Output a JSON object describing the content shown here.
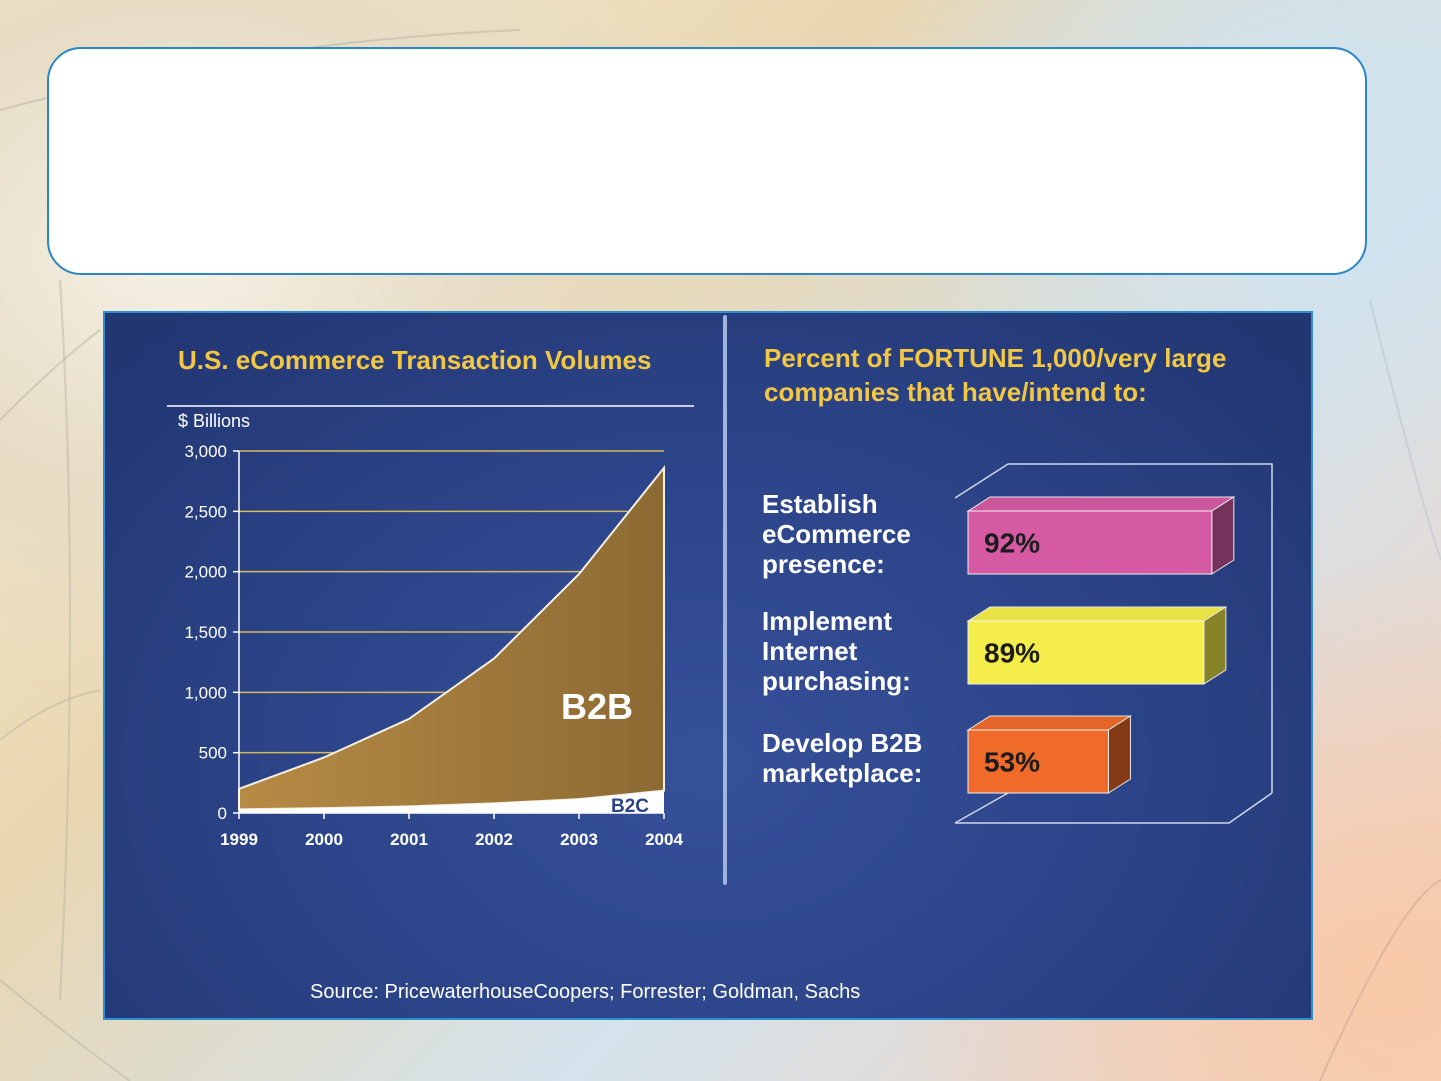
{
  "title_box": {
    "text": ""
  },
  "panel": {
    "source": "Source:  PricewaterhouseCoopers; Forrester; Goldman, Sachs"
  },
  "chart_data": [
    {
      "type": "area",
      "title": "U.S. eCommerce Transaction Volumes",
      "ylabel": "$ Billions",
      "xlabel": "",
      "x": [
        "1999",
        "2000",
        "2001",
        "2002",
        "2003",
        "2004"
      ],
      "yticks": [
        "0",
        "500",
        "1,000",
        "1,500",
        "2,000",
        "2,500",
        "3,000"
      ],
      "ylim": [
        0,
        3000
      ],
      "grid": true,
      "colors": {
        "B2B": "#a27a3c",
        "B2C": "#ffffff"
      },
      "series": [
        {
          "name": "B2B",
          "values": [
            200,
            460,
            780,
            1280,
            1980,
            2860
          ]
        },
        {
          "name": "B2C",
          "values": [
            30,
            40,
            55,
            80,
            115,
            185
          ]
        }
      ]
    },
    {
      "type": "bar",
      "title": "Percent of FORTUNE 1,000/very large companies that have/intend to:",
      "orientation": "horizontal",
      "categories": [
        "Establish eCommerce presence:",
        "Implement Internet purchasing:",
        "Develop B2B marketplace:"
      ],
      "values": [
        92,
        89,
        53
      ],
      "value_labels": [
        "92%",
        "89%",
        "53%"
      ],
      "xlim": [
        0,
        100
      ],
      "colors": [
        "#d65aa3",
        "#f5ee4a",
        "#f06a2a"
      ]
    }
  ]
}
